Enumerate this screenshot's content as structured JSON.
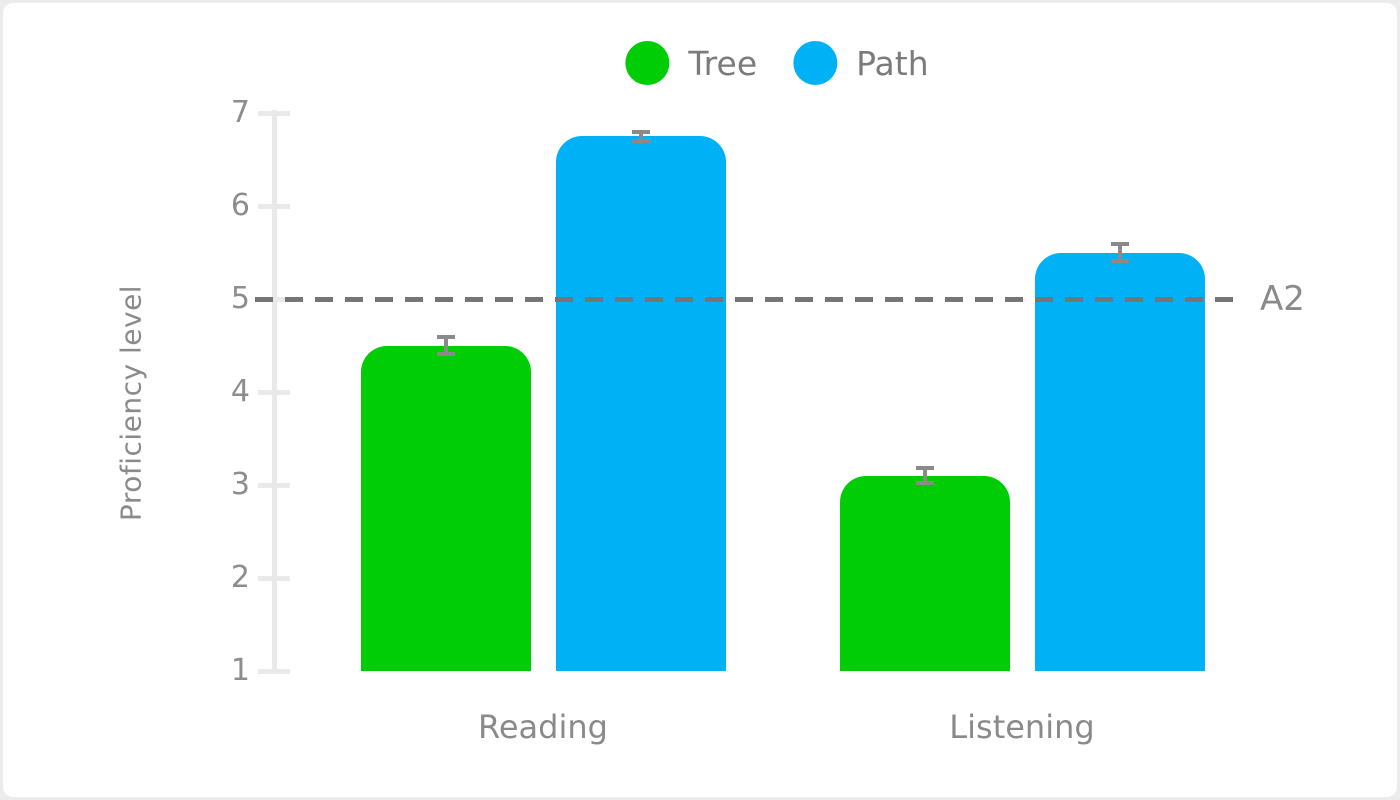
{
  "chart_data": {
    "type": "bar",
    "title": "",
    "categories": [
      "Reading",
      "Listening"
    ],
    "series": [
      {
        "name": "Tree",
        "color": "#00cd05",
        "values": [
          4.5,
          3.1
        ],
        "errors": [
          0.11,
          0.1
        ]
      },
      {
        "name": "Path",
        "color": "#00b2f5",
        "values": [
          6.75,
          5.5
        ],
        "errors": [
          0.07,
          0.11
        ]
      }
    ],
    "xlabel": "",
    "ylabel": "Proficiency level",
    "ylim": [
      1,
      7
    ],
    "yticks": [
      1,
      2,
      3,
      4,
      5,
      6,
      7
    ],
    "grid": false,
    "legend_position": "top",
    "reference_line": {
      "value": 5,
      "label": "A2",
      "style": "dashed"
    }
  },
  "colors": {
    "frame_background": "#ececec",
    "card_background": "#ffffff",
    "axis": "#e9e9e9",
    "tick_label": "#8d8d8d",
    "category_label": "#8a8a8a",
    "legend_label": "#7b7b7b",
    "error_bar": "#8a8a8a",
    "reference_line": "#757575"
  }
}
